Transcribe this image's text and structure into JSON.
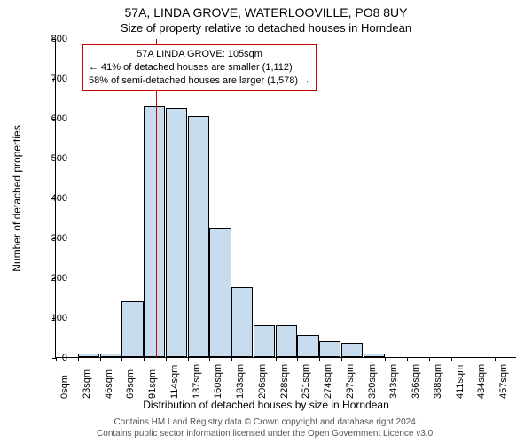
{
  "title_main": "57A, LINDA GROVE, WATERLOOVILLE, PO8 8UY",
  "title_sub": "Size of property relative to detached houses in Horndean",
  "ylabel": "Number of detached properties",
  "xlabel": "Distribution of detached houses by size in Horndean",
  "footer_line1": "Contains HM Land Registry data © Crown copyright and database right 2024.",
  "footer_line2": "Contains public sector information licensed under the Open Government Licence v3.0.",
  "annotation": {
    "line1": "57A LINDA GROVE: 105sqm",
    "line2": "← 41% of detached houses are smaller (1,112)",
    "line3": "58% of semi-detached houses are larger (1,578) →"
  },
  "chart": {
    "type": "histogram",
    "bar_fill": "#c8dcf0",
    "bar_border": "#000000",
    "marker_color": "#cc0000",
    "background": "#ffffff",
    "ylim": [
      0,
      800
    ],
    "ytick_step": 100,
    "x_bin_width": 23,
    "x_categories": [
      "0sqm",
      "23sqm",
      "46sqm",
      "69sqm",
      "91sqm",
      "114sqm",
      "137sqm",
      "160sqm",
      "183sqm",
      "206sqm",
      "228sqm",
      "251sqm",
      "274sqm",
      "297sqm",
      "320sqm",
      "343sqm",
      "366sqm",
      "388sqm",
      "411sqm",
      "434sqm",
      "457sqm"
    ],
    "bar_values": [
      0,
      10,
      10,
      140,
      630,
      625,
      605,
      325,
      175,
      80,
      80,
      55,
      40,
      35,
      10,
      0,
      0,
      0,
      0,
      0,
      0
    ],
    "marker_x_value": 105,
    "title_fontsize": 14,
    "subtitle_fontsize": 13,
    "axis_label_fontsize": 12,
    "tick_fontsize": 11,
    "annotation_fontsize": 11,
    "footer_fontsize": 10
  }
}
